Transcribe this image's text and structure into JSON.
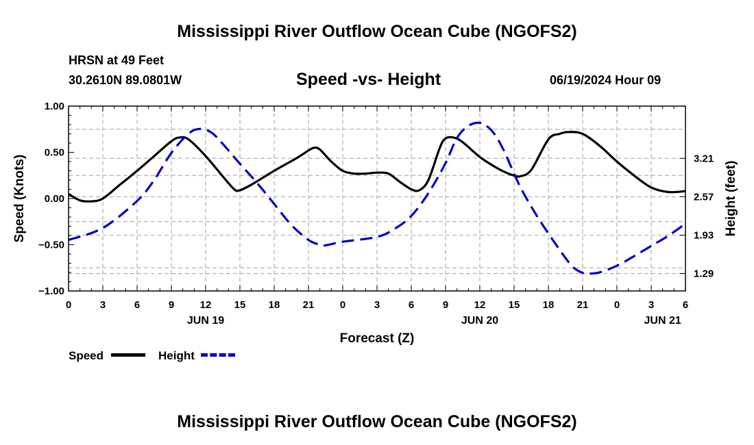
{
  "header": {
    "title": "Mississippi River Outflow Ocean Cube (NGOFS2)",
    "station": "HRSN at 49 Feet",
    "coords": "30.2610N  89.0801W",
    "subtitle": "Speed -vs- Height",
    "datetime": "06/19/2024 Hour 09"
  },
  "footer": {
    "title": "Mississippi River Outflow Ocean Cube (NGOFS2)"
  },
  "legend": {
    "speed_label": "Speed",
    "height_label": "Height"
  },
  "colors": {
    "speed": "#000000",
    "height": "#0000cc",
    "grid": "#b4b4b4"
  },
  "chart_data": {
    "type": "line",
    "xlabel": "Forecast (Z)",
    "ylabel": "Speed (Knots)",
    "y2label": "Height (feet)",
    "xlim": [
      0,
      54
    ],
    "ylim": [
      -1.0,
      1.0
    ],
    "y2lim": [
      1.0,
      4.08
    ],
    "x_ticks": [
      0,
      3,
      6,
      9,
      12,
      15,
      18,
      21,
      24,
      27,
      30,
      33,
      36,
      39,
      42,
      45,
      48,
      51,
      54
    ],
    "x_tick_labels": [
      "0",
      "3",
      "6",
      "9",
      "12",
      "15",
      "18",
      "21",
      "0",
      "3",
      "6",
      "9",
      "12",
      "15",
      "18",
      "21",
      "0",
      "3",
      "6"
    ],
    "day_labels": [
      {
        "x": 12,
        "label": "JUN 19"
      },
      {
        "x": 36,
        "label": "JUN 20"
      },
      {
        "x": 52,
        "label": "JUN 21"
      }
    ],
    "y_ticks": [
      1.0,
      0.5,
      0.0,
      -0.5,
      -1.0
    ],
    "y_tick_labels": [
      "1.00",
      "0.50",
      "0.00",
      "−0.50",
      "−1.00"
    ],
    "y2_ticks": [
      3.21,
      2.57,
      1.93,
      1.29
    ],
    "y2_tick_labels": [
      "3.21",
      "2.57",
      "1.93",
      "1.29"
    ],
    "grid": true,
    "series": [
      {
        "name": "Speed",
        "axis": "left",
        "style": "solid",
        "x": [
          0,
          1,
          2,
          3,
          4.5,
          6,
          7.5,
          9,
          9.7,
          10.5,
          12,
          13.5,
          14.5,
          15,
          16,
          18,
          20,
          21,
          21.5,
          22,
          23,
          24,
          25,
          26,
          27,
          28,
          29,
          30,
          30.7,
          31.5,
          32.5,
          33,
          33.7,
          34.5,
          36,
          37.5,
          38.5,
          39,
          39.5,
          40.5,
          42,
          43,
          43.8,
          45,
          46.5,
          48,
          49.5,
          51,
          52.5,
          54
        ],
        "values": [
          0.05,
          -0.02,
          -0.03,
          0.0,
          0.15,
          0.3,
          0.46,
          0.62,
          0.66,
          0.64,
          0.46,
          0.24,
          0.1,
          0.09,
          0.15,
          0.3,
          0.44,
          0.52,
          0.55,
          0.53,
          0.4,
          0.3,
          0.27,
          0.27,
          0.28,
          0.27,
          0.18,
          0.1,
          0.09,
          0.2,
          0.55,
          0.65,
          0.66,
          0.61,
          0.45,
          0.33,
          0.27,
          0.25,
          0.24,
          0.31,
          0.64,
          0.7,
          0.72,
          0.7,
          0.57,
          0.4,
          0.25,
          0.12,
          0.07,
          0.08
        ]
      },
      {
        "name": "Height",
        "axis": "right",
        "style": "dashed",
        "x": [
          0,
          3,
          6,
          7.5,
          9,
          10.5,
          11.5,
          12.5,
          13.5,
          15,
          16.5,
          18,
          19.5,
          21,
          22,
          22.5,
          24,
          27,
          28.5,
          30,
          31.5,
          33,
          34,
          35,
          36,
          37,
          38,
          39.5,
          41,
          42.5,
          44,
          45,
          45.7,
          46.5,
          48,
          49.5,
          51,
          52.5,
          54
        ],
        "values": [
          1.85,
          2.05,
          2.5,
          2.85,
          3.3,
          3.62,
          3.7,
          3.64,
          3.45,
          3.12,
          2.8,
          2.45,
          2.1,
          1.85,
          1.77,
          1.76,
          1.82,
          1.9,
          2.03,
          2.25,
          2.63,
          3.13,
          3.55,
          3.75,
          3.8,
          3.68,
          3.38,
          2.75,
          2.25,
          1.82,
          1.43,
          1.3,
          1.29,
          1.31,
          1.42,
          1.58,
          1.75,
          1.92,
          2.12
        ]
      }
    ]
  }
}
